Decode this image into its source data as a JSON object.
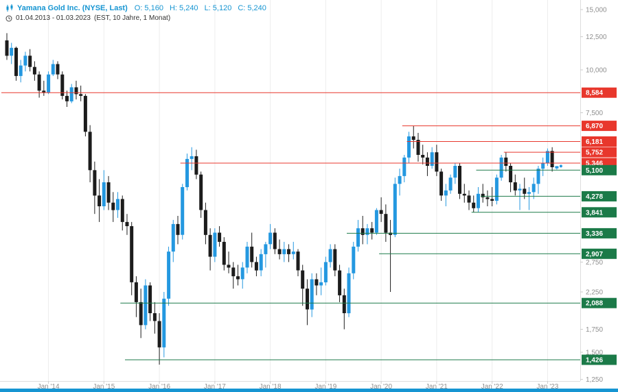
{
  "header": {
    "title": "Yamana Gold Inc. (NYSE, Last)",
    "open": "O: 5,160",
    "high": "H: 5,240",
    "low": "L: 5,120",
    "close": "C: 5,240",
    "date_range": "01.04.2013 - 01.03.2023",
    "timeframe": "(EST, 10 Jahre, 1 Monat)"
  },
  "colors": {
    "up": "#2498e0",
    "down": "#1c1c1c",
    "resistance": "#e8372c",
    "support": "#1b7a48",
    "accent": "#1695d2",
    "axis_text": "#8f8f8f",
    "grid": "#ededed"
  },
  "chart_data": {
    "type": "candlestick",
    "title": "Yamana Gold Inc. (NYSE, Last)",
    "range": "01.04.2013 - 01.03.2023",
    "interval": "1 Monat",
    "y_scale": "log",
    "last_price": 5240,
    "y_ticks": [
      {
        "value": 15000,
        "label": "15,000"
      },
      {
        "value": 12500,
        "label": "12,500"
      },
      {
        "value": 10000,
        "label": "10,000"
      },
      {
        "value": 7500,
        "label": "7,500"
      },
      {
        "value": 2750,
        "label": "2,750"
      },
      {
        "value": 2250,
        "label": "2,250"
      },
      {
        "value": 1750,
        "label": "1,750"
      },
      {
        "value": 1500,
        "label": "1,500"
      },
      {
        "value": 1250,
        "label": "1,250"
      }
    ],
    "x_labels": [
      {
        "label": "Jan '14",
        "month": 9
      },
      {
        "label": "Jan '15",
        "month": 21
      },
      {
        "label": "Jan '16",
        "month": 33
      },
      {
        "label": "Jan '17",
        "month": 45
      },
      {
        "label": "Jan '18",
        "month": 57
      },
      {
        "label": "Jan '19",
        "month": 69
      },
      {
        "label": "Jan '20",
        "month": 81
      },
      {
        "label": "Jan '21",
        "month": 93
      },
      {
        "label": "Jan '22",
        "month": 105
      },
      {
        "label": "Jan '23",
        "month": 117
      }
    ],
    "levels": [
      {
        "value": 8584,
        "label": "8,584",
        "type": "resistance",
        "from_month": 0
      },
      {
        "value": 6870,
        "label": "6,870",
        "type": "resistance",
        "from_month": 86
      },
      {
        "value": 6181,
        "label": "6,181",
        "type": "resistance",
        "from_month": 87
      },
      {
        "value": 5752,
        "label": "5,752",
        "type": "resistance",
        "from_month": 108
      },
      {
        "value": 5346,
        "label": "5,346",
        "type": "resistance",
        "from_month": 38
      },
      {
        "value": 5100,
        "label": "5,100",
        "type": "support",
        "from_month": 102
      },
      {
        "value": 4278,
        "label": "4,278",
        "type": "support",
        "from_month": 103
      },
      {
        "value": 3841,
        "label": "3,841",
        "type": "support",
        "from_month": 101
      },
      {
        "value": 3336,
        "label": "3,336",
        "type": "support",
        "from_month": 74
      },
      {
        "value": 2907,
        "label": "2,907",
        "type": "support",
        "from_month": 81
      },
      {
        "value": 2088,
        "label": "2,088",
        "type": "support",
        "from_month": 25
      },
      {
        "value": 1426,
        "label": "1,426",
        "type": "support",
        "from_month": 26
      }
    ],
    "candles": [
      [
        12200,
        12800,
        10700,
        11000
      ],
      [
        11000,
        12000,
        10400,
        11600
      ],
      [
        11600,
        11700,
        9300,
        9600
      ],
      [
        9600,
        10700,
        9200,
        10300
      ],
      [
        10300,
        11300,
        9900,
        11000
      ],
      [
        11000,
        11500,
        9900,
        10200
      ],
      [
        10200,
        10600,
        9300,
        9700
      ],
      [
        9700,
        9900,
        8300,
        8700
      ],
      [
        8700,
        9300,
        8400,
        8600
      ],
      [
        8600,
        9900,
        8500,
        9700
      ],
      [
        9700,
        10700,
        9600,
        10400
      ],
      [
        10400,
        10600,
        9400,
        9700
      ],
      [
        9700,
        9900,
        8200,
        8400
      ],
      [
        8400,
        8700,
        7800,
        8100
      ],
      [
        8100,
        9100,
        8000,
        8900
      ],
      [
        8900,
        9300,
        8200,
        8500
      ],
      [
        8500,
        9000,
        8100,
        8400
      ],
      [
        8400,
        8500,
        6400,
        6600
      ],
      [
        6600,
        6900,
        4700,
        5100
      ],
      [
        5100,
        5400,
        3800,
        4300
      ],
      [
        4300,
        4800,
        3600,
        4000
      ],
      [
        4000,
        5100,
        3900,
        4700
      ],
      [
        4700,
        4900,
        3900,
        4100
      ],
      [
        4100,
        4400,
        3600,
        3900
      ],
      [
        3900,
        4400,
        3700,
        4200
      ],
      [
        4200,
        4300,
        3400,
        3600
      ],
      [
        3600,
        3800,
        3300,
        3500
      ],
      [
        3500,
        3600,
        2200,
        2400
      ],
      [
        2400,
        2500,
        1900,
        2100
      ],
      [
        2100,
        2300,
        1650,
        1800
      ],
      [
        1800,
        2450,
        1750,
        2350
      ],
      [
        2350,
        2400,
        1850,
        1950
      ],
      [
        1950,
        2100,
        1700,
        1850
      ],
      [
        1850,
        1950,
        1380,
        1550
      ],
      [
        1550,
        2250,
        1450,
        2150
      ],
      [
        2150,
        3050,
        2050,
        2950
      ],
      [
        2950,
        3650,
        2750,
        3550
      ],
      [
        3550,
        3750,
        3100,
        3300
      ],
      [
        3300,
        4650,
        3200,
        4550
      ],
      [
        4550,
        5700,
        4450,
        5500
      ],
      [
        5500,
        5950,
        5100,
        5600
      ],
      [
        5600,
        5850,
        4800,
        4950
      ],
      [
        4950,
        5050,
        3700,
        3900
      ],
      [
        3900,
        4100,
        3100,
        3300
      ],
      [
        3300,
        3450,
        2600,
        2850
      ],
      [
        2850,
        3450,
        2750,
        3350
      ],
      [
        3350,
        3500,
        3050,
        3150
      ],
      [
        3150,
        3250,
        2600,
        2700
      ],
      [
        2700,
        2950,
        2550,
        2650
      ],
      [
        2650,
        2750,
        2300,
        2500
      ],
      [
        2500,
        2700,
        2350,
        2450
      ],
      [
        2450,
        2750,
        2300,
        2650
      ],
      [
        2650,
        3150,
        2550,
        3050
      ],
      [
        3050,
        3350,
        2650,
        2750
      ],
      [
        2750,
        2850,
        2500,
        2600
      ],
      [
        2600,
        3000,
        2500,
        2900
      ],
      [
        2900,
        3150,
        2650,
        3100
      ],
      [
        3100,
        3550,
        3000,
        3350
      ],
      [
        3350,
        3450,
        2900,
        3000
      ],
      [
        3000,
        3200,
        2800,
        2900
      ],
      [
        2900,
        3150,
        2750,
        3000
      ],
      [
        3000,
        3100,
        2750,
        2900
      ],
      [
        2900,
        3150,
        2800,
        2950
      ],
      [
        2950,
        3000,
        2500,
        2600
      ],
      [
        2600,
        2700,
        2050,
        2300
      ],
      [
        2300,
        2450,
        1800,
        2000
      ],
      [
        2000,
        2550,
        1900,
        2450
      ],
      [
        2450,
        2550,
        2200,
        2350
      ],
      [
        2350,
        2650,
        2200,
        2400
      ],
      [
        2400,
        2850,
        2350,
        2750
      ],
      [
        2750,
        3100,
        2650,
        3000
      ],
      [
        3000,
        3100,
        2500,
        2600
      ],
      [
        2600,
        2700,
        2100,
        2200
      ],
      [
        2200,
        2300,
        1750,
        1950
      ],
      [
        1950,
        2650,
        1900,
        2550
      ],
      [
        2550,
        3150,
        2450,
        3050
      ],
      [
        3050,
        3650,
        2950,
        3450
      ],
      [
        3450,
        3750,
        3100,
        3300
      ],
      [
        3300,
        3550,
        3100,
        3450
      ],
      [
        3450,
        3600,
        3200,
        3350
      ],
      [
        3350,
        3950,
        3300,
        3900
      ],
      [
        3900,
        4250,
        3600,
        3800
      ],
      [
        3800,
        4050,
        3150,
        3350
      ],
      [
        3350,
        3650,
        2250,
        3300
      ],
      [
        3300,
        4850,
        3250,
        4650
      ],
      [
        4650,
        5150,
        4300,
        4900
      ],
      [
        4900,
        5650,
        4700,
        5550
      ],
      [
        5550,
        6600,
        5350,
        6400
      ],
      [
        6400,
        6870,
        5900,
        6250
      ],
      [
        6250,
        6550,
        5400,
        5650
      ],
      [
        5650,
        6050,
        5300,
        5550
      ],
      [
        5550,
        5750,
        4900,
        5250
      ],
      [
        5250,
        5950,
        5150,
        5750
      ],
      [
        5750,
        6050,
        4900,
        5050
      ],
      [
        5050,
        5150,
        4150,
        4300
      ],
      [
        4300,
        4650,
        4000,
        4450
      ],
      [
        4450,
        4950,
        4350,
        4850
      ],
      [
        4850,
        5350,
        4650,
        5250
      ],
      [
        5250,
        5350,
        4200,
        4350
      ],
      [
        4350,
        4650,
        4100,
        4300
      ],
      [
        4300,
        4450,
        3900,
        4100
      ],
      [
        4100,
        4300,
        3841,
        3950
      ],
      [
        3950,
        4550,
        3850,
        4350
      ],
      [
        4350,
        4650,
        4100,
        4250
      ],
      [
        4250,
        4450,
        4000,
        4200
      ],
      [
        4200,
        4550,
        4000,
        4150
      ],
      [
        4150,
        4950,
        4050,
        4850
      ],
      [
        4850,
        5650,
        4750,
        5550
      ],
      [
        5550,
        5752,
        5050,
        5250
      ],
      [
        5250,
        5350,
        4400,
        4700
      ],
      [
        4700,
        4950,
        4300,
        4450
      ],
      [
        4450,
        4650,
        3900,
        4500
      ],
      [
        4500,
        4850,
        4200,
        4350
      ],
      [
        4350,
        4550,
        3900,
        4400
      ],
      [
        4400,
        4850,
        4200,
        4650
      ],
      [
        4650,
        5250,
        4350,
        5150
      ],
      [
        5150,
        5550,
        4900,
        5350
      ],
      [
        5350,
        5900,
        5250,
        5800
      ],
      [
        5800,
        5950,
        5050,
        5200
      ],
      [
        5160,
        5240,
        5120,
        5240
      ]
    ]
  }
}
